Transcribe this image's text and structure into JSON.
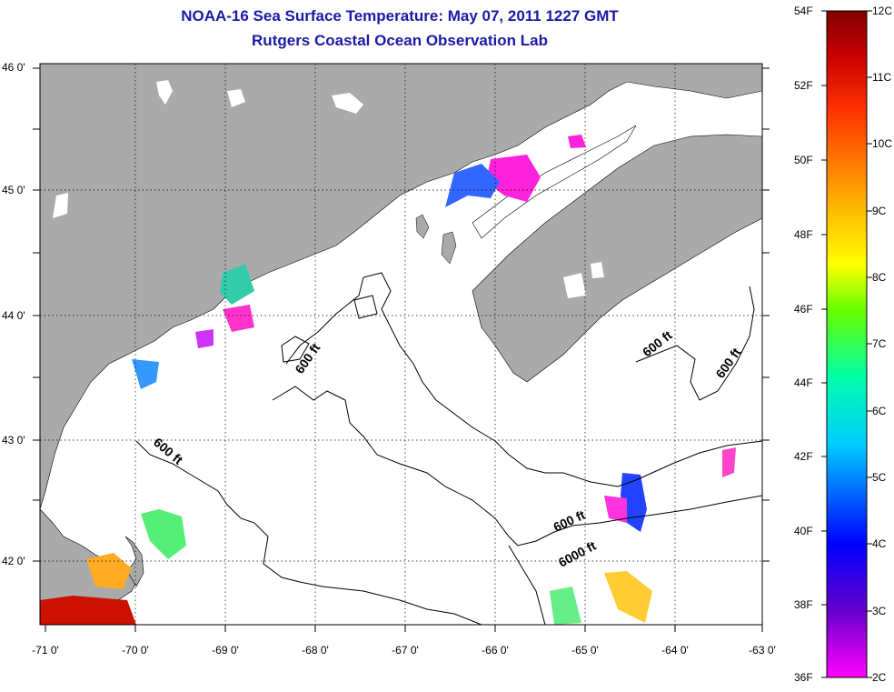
{
  "title_line1": "NOAA-16 Sea Surface Temperature:  May 07, 2011 1227 GMT",
  "title_line2": "Rutgers Coastal Ocean Observation Lab",
  "map": {
    "lon_range": [
      -71,
      -63
    ],
    "lat_range": [
      41.5,
      46
    ],
    "lat_ticks": [
      "46 0'",
      "45 0'",
      "44 0'",
      "43 0'",
      "42 0'"
    ],
    "lon_ticks": [
      "-71 0'",
      "-70 0'",
      "-69 0'",
      "-68 0'",
      "-67 0'",
      "-66 0'",
      "-65 0'",
      "-64 0'",
      "-63 0'"
    ],
    "contour_labels": [
      "600 ft",
      "600 ft",
      "600 ft",
      "600 ft",
      "6000 ft"
    ],
    "grid": "dotted",
    "land_color": "#aaaaaa",
    "water_color": "#ffffff"
  },
  "colorbar": {
    "fahrenheit_labels": [
      "54F",
      "52F",
      "50F",
      "48F",
      "46F",
      "44F",
      "42F",
      "40F",
      "38F",
      "36F"
    ],
    "celsius_labels": [
      "12C",
      "11C",
      "10C",
      "9C",
      "8C",
      "7C",
      "6C",
      "5C",
      "4C",
      "3C",
      "2C"
    ],
    "range_celsius": [
      2,
      12
    ],
    "colors": [
      "#ff00ff",
      "#6600cc",
      "#0000ff",
      "#00ccff",
      "#00ffaa",
      "#66ff00",
      "#ffff00",
      "#ffaa00",
      "#ff3300",
      "#cc0000",
      "#800000"
    ]
  }
}
